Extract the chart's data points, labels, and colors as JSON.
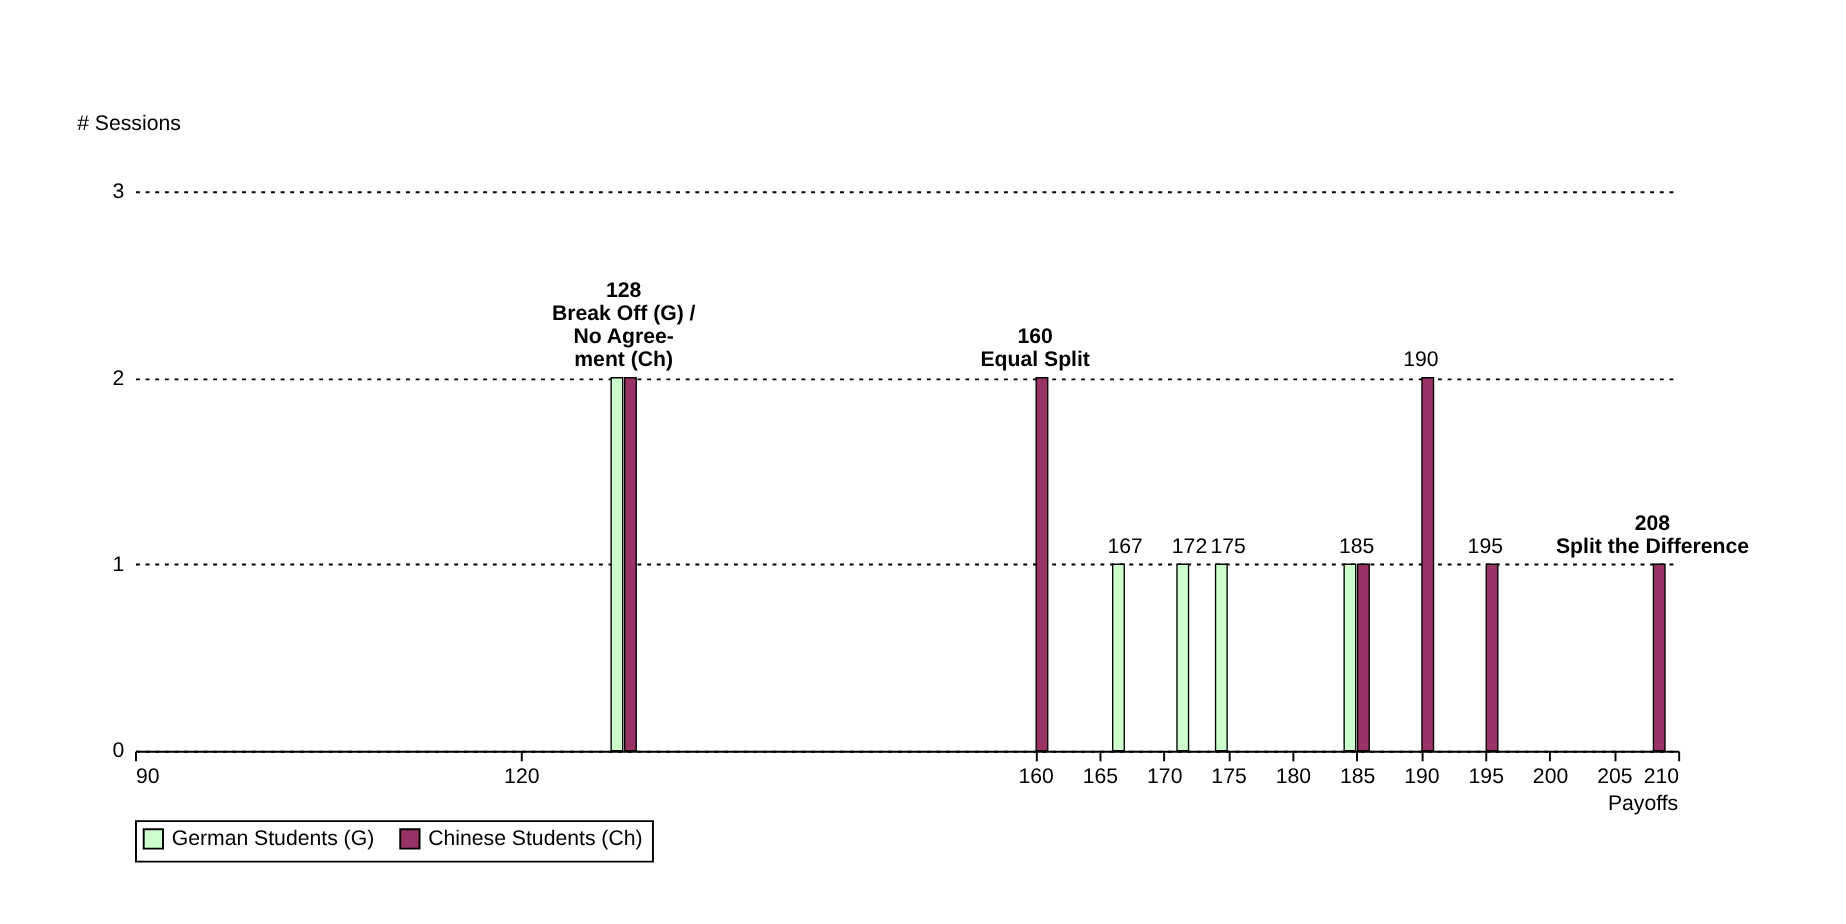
{
  "chart_data": {
    "type": "bar",
    "ylabel": "# Sessions",
    "xlabel": "Payoffs",
    "series": [
      {
        "name": "German Students (G)",
        "color": "#ccffcc",
        "x": [
          128,
          167,
          172,
          175,
          185
        ],
        "values": [
          2,
          1,
          1,
          1,
          1
        ]
      },
      {
        "name": "Chinese Students (Ch)",
        "color": "#993366",
        "x": [
          128,
          160,
          185,
          190,
          195,
          208
        ],
        "values": [
          2,
          2,
          1,
          2,
          1,
          1
        ]
      }
    ],
    "xlim": [
      90,
      210
    ],
    "xticks": [
      90,
      120,
      160,
      165,
      170,
      175,
      180,
      185,
      190,
      195,
      200,
      205,
      210
    ],
    "ylim": [
      0,
      3
    ],
    "yticks": [
      0,
      1,
      2,
      3
    ],
    "grid": "y",
    "legend": "bottom",
    "annotations": [
      {
        "text": "128\nBreak Off (G) /\nNo Agree-\nment (Ch)",
        "x": 128,
        "y": 2
      },
      {
        "text": "160\nEqual Split",
        "x": 160,
        "y": 2
      },
      {
        "text": "167",
        "x": 167,
        "y": 1
      },
      {
        "text": "172",
        "x": 172,
        "y": 1
      },
      {
        "text": "175",
        "x": 175,
        "y": 1
      },
      {
        "text": "185",
        "x": 185,
        "y": 1
      },
      {
        "text": "190",
        "x": 190,
        "y": 2
      },
      {
        "text": "195",
        "x": 195,
        "y": 1
      },
      {
        "text": "208\nSplit the Difference",
        "x": 208,
        "y": 1
      }
    ]
  }
}
